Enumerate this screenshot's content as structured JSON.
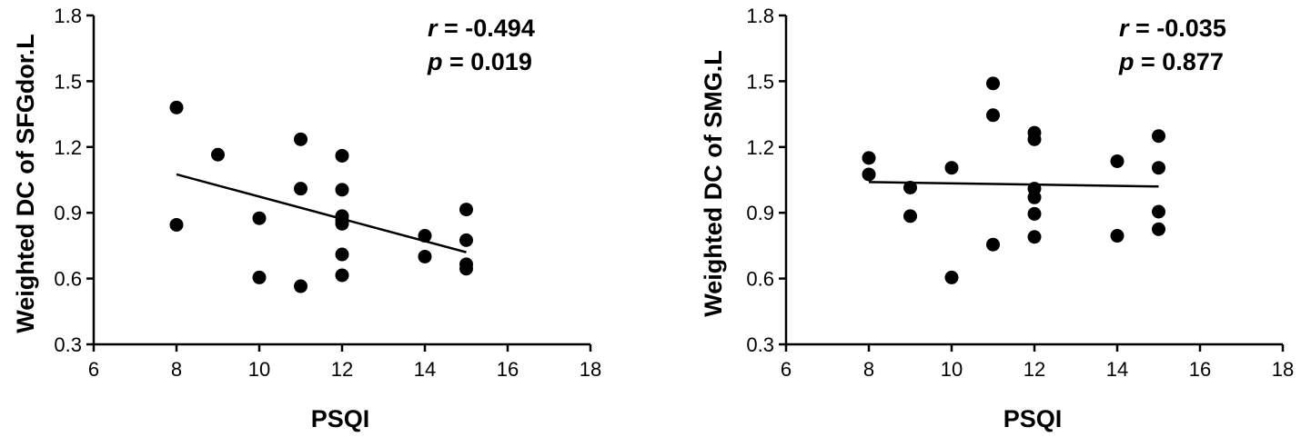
{
  "chart_data": [
    {
      "type": "scatter",
      "ylabel": "Weighted DC of SFGdor.L",
      "xlabel": "PSQI",
      "xlim": [
        6,
        18
      ],
      "ylim": [
        0.3,
        1.8
      ],
      "xticks": [
        "6",
        "8",
        "10",
        "12",
        "14",
        "16",
        "18"
      ],
      "yticks": [
        "0.3",
        "0.6",
        "0.9",
        "1.2",
        "1.5",
        "1.8"
      ],
      "stats": {
        "r_symbol": "r",
        "r_value": " = -0.494",
        "p_symbol": "p",
        "p_value": " = 0.019"
      },
      "fit_line": {
        "x": [
          8,
          15
        ],
        "y": [
          1.075,
          0.72
        ]
      },
      "points": [
        [
          8,
          1.38
        ],
        [
          8,
          0.845
        ],
        [
          9,
          1.165
        ],
        [
          10,
          0.875
        ],
        [
          10,
          0.605
        ],
        [
          11,
          1.235
        ],
        [
          11,
          1.01
        ],
        [
          11,
          0.565
        ],
        [
          12,
          1.16
        ],
        [
          12,
          1.005
        ],
        [
          12,
          0.885
        ],
        [
          12,
          0.865
        ],
        [
          12,
          0.85
        ],
        [
          12,
          0.71
        ],
        [
          12,
          0.615
        ],
        [
          14,
          0.795
        ],
        [
          14,
          0.7
        ],
        [
          15,
          0.915
        ],
        [
          15,
          0.775
        ],
        [
          15,
          0.665
        ],
        [
          15,
          0.645
        ]
      ]
    },
    {
      "type": "scatter",
      "ylabel": "Weighted DC of SMG.L",
      "xlabel": "PSQI",
      "xlim": [
        6,
        18
      ],
      "ylim": [
        0.3,
        1.8
      ],
      "xticks": [
        "6",
        "8",
        "10",
        "12",
        "14",
        "16",
        "18"
      ],
      "yticks": [
        "0.3",
        "0.6",
        "0.9",
        "1.2",
        "1.5",
        "1.8"
      ],
      "stats": {
        "r_symbol": "r",
        "r_value": " = -0.035",
        "p_symbol": "p",
        "p_value": " = 0.877"
      },
      "fit_line": {
        "x": [
          8,
          15
        ],
        "y": [
          1.04,
          1.02
        ]
      },
      "points": [
        [
          8,
          1.15
        ],
        [
          8,
          1.075
        ],
        [
          9,
          1.015
        ],
        [
          9,
          0.885
        ],
        [
          10,
          1.105
        ],
        [
          10,
          0.605
        ],
        [
          11,
          1.49
        ],
        [
          11,
          1.345
        ],
        [
          11,
          0.755
        ],
        [
          12,
          1.265
        ],
        [
          12,
          1.235
        ],
        [
          12,
          1.01
        ],
        [
          12,
          0.97
        ],
        [
          12,
          0.895
        ],
        [
          12,
          0.79
        ],
        [
          14,
          1.135
        ],
        [
          14,
          0.795
        ],
        [
          15,
          1.25
        ],
        [
          15,
          1.105
        ],
        [
          15,
          0.905
        ],
        [
          15,
          0.825
        ]
      ]
    }
  ]
}
